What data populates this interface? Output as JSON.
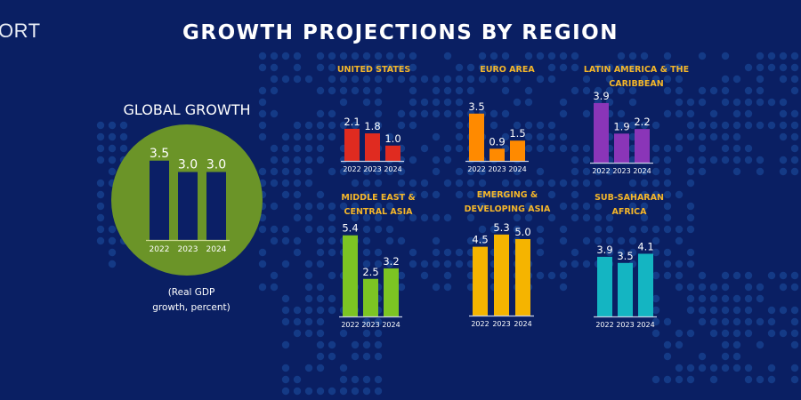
{
  "brand_fragment": "ORT",
  "title": "GROWTH PROJECTIONS BY REGION",
  "note_line1": "(Real GDP",
  "note_line2": "growth, percent)",
  "colors": {
    "background": "#0a1f63",
    "dots": "#17418f",
    "title_accent": "#f4b62a",
    "global_circle": "#6b9428",
    "global_bars": "#0b1f66"
  },
  "chart_data": [
    {
      "type": "bar",
      "title": "GLOBAL GROWTH",
      "categories": [
        "2022",
        "2023",
        "2024"
      ],
      "values": [
        3.5,
        3.0,
        3.0
      ],
      "labels": [
        "3.5",
        "3.0",
        "3.0"
      ],
      "color": "#0b1f66",
      "ylabel": "Real GDP growth, percent"
    },
    {
      "type": "bar",
      "title": "UNITED STATES",
      "title_lines": [
        "UNITED STATES"
      ],
      "categories": [
        "2022",
        "2023",
        "2024"
      ],
      "values": [
        2.1,
        1.8,
        1.0
      ],
      "labels": [
        "2.1",
        "1.8",
        "1.0"
      ],
      "color": "#e02b20"
    },
    {
      "type": "bar",
      "title": "EURO AREA",
      "title_lines": [
        "EURO AREA"
      ],
      "categories": [
        "2022",
        "2023",
        "2024"
      ],
      "values": [
        3.5,
        0.9,
        1.5
      ],
      "labels": [
        "3.5",
        "0.9",
        "1.5"
      ],
      "color": "#ff8a00"
    },
    {
      "type": "bar",
      "title": "LATIN AMERICA & THE CARIBBEAN",
      "title_lines": [
        "LATIN AMERICA & THE",
        "CARIBBEAN"
      ],
      "categories": [
        "2022",
        "2023",
        "2024"
      ],
      "values": [
        3.9,
        1.9,
        2.2
      ],
      "labels": [
        "3.9",
        "1.9",
        "2.2"
      ],
      "color": "#8a35b8"
    },
    {
      "type": "bar",
      "title": "MIDDLE EAST & CENTRAL ASIA",
      "title_lines": [
        "MIDDLE EAST &",
        "CENTRAL ASIA"
      ],
      "categories": [
        "2022",
        "2023",
        "2024"
      ],
      "values": [
        5.4,
        2.5,
        3.2
      ],
      "labels": [
        "5.4",
        "2.5",
        "3.2"
      ],
      "color": "#7cc423"
    },
    {
      "type": "bar",
      "title": "EMERGING & DEVELOPING ASIA",
      "title_lines": [
        "EMERGING &",
        "DEVELOPING ASIA"
      ],
      "categories": [
        "2022",
        "2023",
        "2024"
      ],
      "values": [
        4.5,
        5.3,
        5.0
      ],
      "labels": [
        "4.5",
        "5.3",
        "5.0"
      ],
      "color": "#f5b400"
    },
    {
      "type": "bar",
      "title": "SUB-SAHARAN AFRICA",
      "title_lines": [
        "SUB-SAHARAN",
        "AFRICA"
      ],
      "categories": [
        "2022",
        "2023",
        "2024"
      ],
      "values": [
        3.9,
        3.5,
        4.1
      ],
      "labels": [
        "3.9",
        "3.5",
        "4.1"
      ],
      "color": "#14b5c2"
    }
  ]
}
